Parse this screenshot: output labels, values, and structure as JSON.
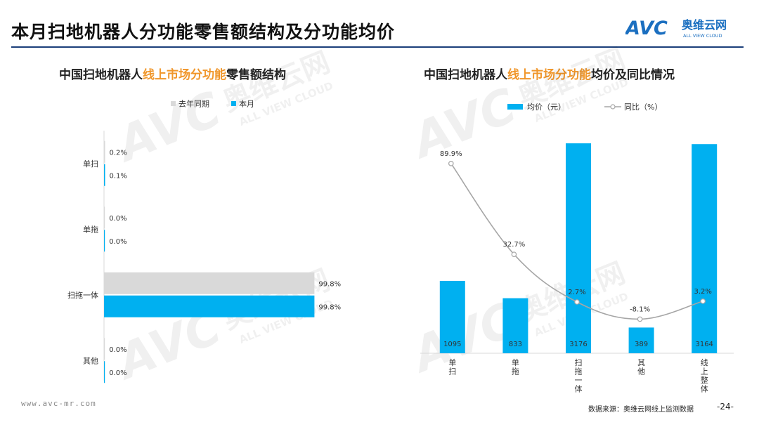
{
  "header": {
    "title": "本月扫地机器人分功能零售额结构及分功能均价",
    "logo_text": "AVC",
    "logo_cn": "奥维云网",
    "logo_en": "ALL VIEW CLOUD"
  },
  "watermark": {
    "text": "AVC",
    "cn": "奥维云网",
    "en": "ALL VIEW CLOUD"
  },
  "chart_data": [
    {
      "type": "bar",
      "orientation": "horizontal",
      "title_parts": [
        "中国扫地机器人",
        "线上市场分功能",
        "零售额结构"
      ],
      "categories": [
        "单扫",
        "单拖",
        "扫拖一体",
        "其他"
      ],
      "series": [
        {
          "name": "去年同期",
          "values": [
            0.2,
            0.0,
            99.8,
            0.0
          ],
          "labels": [
            "0.2%",
            "0.0%",
            "99.8%",
            "0.0%"
          ],
          "color": "#d9d9d9"
        },
        {
          "name": "本月",
          "values": [
            0.1,
            0.0,
            99.8,
            0.0
          ],
          "labels": [
            "0.1%",
            "0.0%",
            "99.8%",
            "0.0%"
          ],
          "color": "#00b0f0"
        }
      ],
      "xlim": [
        0,
        100
      ],
      "legend": "top"
    },
    {
      "type": "bar+line",
      "title_parts": [
        "中国扫地机器人",
        "线上市场分功能",
        "均价及同比情况"
      ],
      "categories": [
        "单扫",
        "单拖",
        "扫拖一体",
        "其他",
        "线上整体"
      ],
      "bar_series": {
        "name": "均价（元）",
        "values": [
          1095,
          833,
          3176,
          389,
          3164
        ],
        "labels": [
          "1095",
          "833",
          "3176",
          "389",
          "3164"
        ],
        "color": "#00b0f0"
      },
      "line_series": {
        "name": "同比（%）",
        "values": [
          89.9,
          32.7,
          2.7,
          -8.1,
          3.2
        ],
        "labels": [
          "89.9%",
          "32.7%",
          "2.7%",
          "-8.1%",
          "3.2%"
        ],
        "color": "#a6a6a6"
      },
      "bar_ylim": [
        0,
        3400
      ],
      "line_ylim": [
        -15,
        100
      ],
      "legend": "top"
    }
  ],
  "footer": {
    "url": "www.avc-mr.com",
    "source": "数据来源：奥维云网线上监测数据",
    "page_number": "-24-"
  }
}
